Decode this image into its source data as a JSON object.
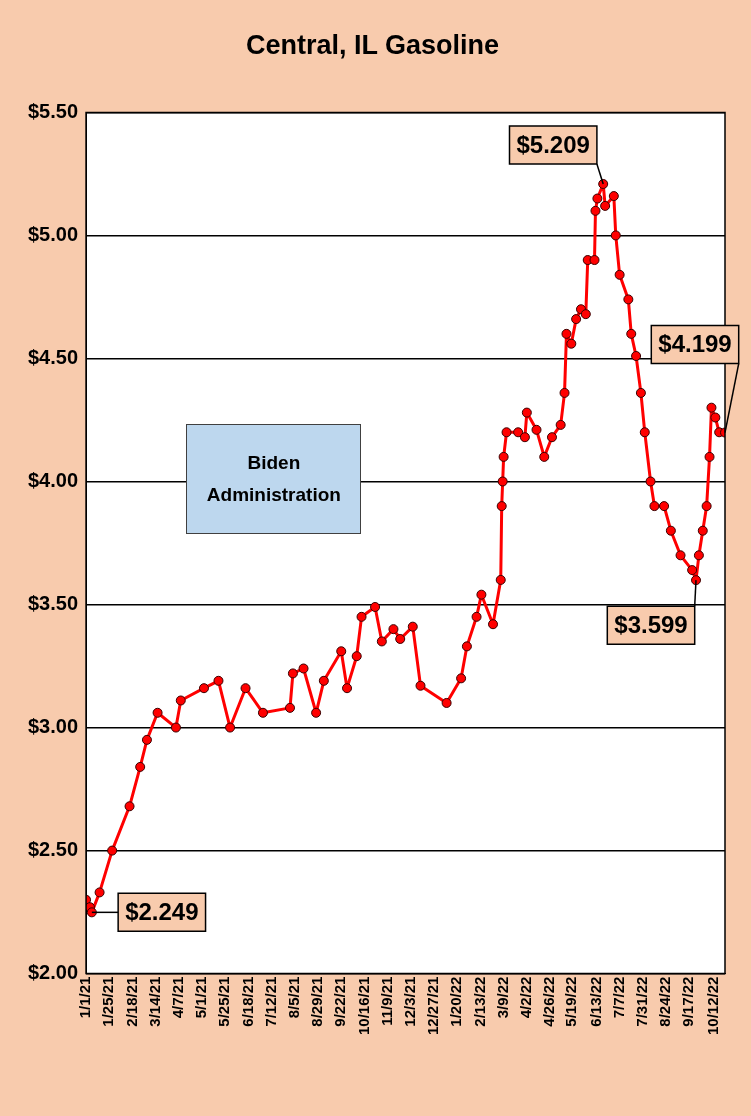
{
  "chart_data": {
    "type": "line",
    "title": "Central, IL Gasoline",
    "x": [
      "2021-01-01",
      "2021-01-05",
      "2021-01-07",
      "2021-01-15",
      "2021-01-28",
      "2021-02-15",
      "2021-02-26",
      "2021-03-05",
      "2021-03-16",
      "2021-04-04",
      "2021-04-09",
      "2021-05-03",
      "2021-05-18",
      "2021-05-30",
      "2021-06-15",
      "2021-07-03",
      "2021-07-31",
      "2021-08-03",
      "2021-08-14",
      "2021-08-27",
      "2021-09-04",
      "2021-09-22",
      "2021-09-28",
      "2021-10-08",
      "2021-10-13",
      "2021-10-27",
      "2021-11-03",
      "2021-11-15",
      "2021-11-22",
      "2021-12-05",
      "2021-12-13",
      "2022-01-09",
      "2022-01-24",
      "2022-01-30",
      "2022-02-09",
      "2022-02-14",
      "2022-02-26",
      "2022-03-06",
      "2022-03-07",
      "2022-03-08",
      "2022-03-09",
      "2022-03-12",
      "2022-03-24",
      "2022-03-31",
      "2022-04-02",
      "2022-04-12",
      "2022-04-20",
      "2022-04-28",
      "2022-05-07",
      "2022-05-11",
      "2022-05-13",
      "2022-05-18",
      "2022-05-23",
      "2022-05-28",
      "2022-06-02",
      "2022-06-04",
      "2022-06-11",
      "2022-06-12",
      "2022-06-14",
      "2022-06-20",
      "2022-06-22",
      "2022-07-01",
      "2022-07-03",
      "2022-07-07",
      "2022-07-16",
      "2022-07-19",
      "2022-07-24",
      "2022-07-29",
      "2022-08-02",
      "2022-08-08",
      "2022-08-12",
      "2022-08-22",
      "2022-08-29",
      "2022-09-08",
      "2022-09-20",
      "2022-09-24",
      "2022-09-27",
      "2022-10-01",
      "2022-10-05",
      "2022-10-08",
      "2022-10-10",
      "2022-10-14",
      "2022-10-18",
      "2022-10-24"
    ],
    "series": [
      {
        "color": "#ff0000",
        "values": [
          2.3,
          2.27,
          2.249,
          2.33,
          2.5,
          2.68,
          2.84,
          2.95,
          3.06,
          3.0,
          3.11,
          3.16,
          3.19,
          3.0,
          3.16,
          3.06,
          3.08,
          3.22,
          3.24,
          3.06,
          3.19,
          3.31,
          3.16,
          3.29,
          3.45,
          3.49,
          3.35,
          3.4,
          3.36,
          3.41,
          3.17,
          3.1,
          3.2,
          3.33,
          3.45,
          3.54,
          3.42,
          3.6,
          3.9,
          4.0,
          4.1,
          4.2,
          4.2,
          4.18,
          4.28,
          4.21,
          4.1,
          4.18,
          4.23,
          4.36,
          4.6,
          4.56,
          4.66,
          4.7,
          4.68,
          4.9,
          4.9,
          5.1,
          5.15,
          5.209,
          5.12,
          5.16,
          5.0,
          4.84,
          4.74,
          4.6,
          4.51,
          4.36,
          4.2,
          4.0,
          3.9,
          3.9,
          3.8,
          3.7,
          3.64,
          3.599,
          3.7,
          3.8,
          3.9,
          4.1,
          4.3,
          4.26,
          4.2,
          4.199
        ]
      }
    ],
    "xlim": [
      "2021-01-01",
      "2022-10-24"
    ],
    "xticks": [
      {
        "value": "2021-01-01",
        "label": "1/1/21"
      },
      {
        "value": "2021-01-25",
        "label": "1/25/21"
      },
      {
        "value": "2021-02-18",
        "label": "2/18/21"
      },
      {
        "value": "2021-03-14",
        "label": "3/14/21"
      },
      {
        "value": "2021-04-07",
        "label": "4/7/21"
      },
      {
        "value": "2021-05-01",
        "label": "5/1/21"
      },
      {
        "value": "2021-05-25",
        "label": "5/25/21"
      },
      {
        "value": "2021-06-18",
        "label": "6/18/21"
      },
      {
        "value": "2021-07-12",
        "label": "7/12/21"
      },
      {
        "value": "2021-08-05",
        "label": "8/5/21"
      },
      {
        "value": "2021-08-29",
        "label": "8/29/21"
      },
      {
        "value": "2021-09-22",
        "label": "9/22/21"
      },
      {
        "value": "2021-10-16",
        "label": "10/16/21"
      },
      {
        "value": "2021-11-09",
        "label": "11/9/21"
      },
      {
        "value": "2021-12-03",
        "label": "12/3/21"
      },
      {
        "value": "2021-12-27",
        "label": "12/27/21"
      },
      {
        "value": "2022-01-20",
        "label": "1/20/22"
      },
      {
        "value": "2022-02-13",
        "label": "2/13/22"
      },
      {
        "value": "2022-03-09",
        "label": "3/9/22"
      },
      {
        "value": "2022-04-02",
        "label": "4/2/22"
      },
      {
        "value": "2022-04-26",
        "label": "4/26/22"
      },
      {
        "value": "2022-05-19",
        "label": "5/19/22"
      },
      {
        "value": "2022-06-13",
        "label": "6/13/22"
      },
      {
        "value": "2022-07-07",
        "label": "7/7/22"
      },
      {
        "value": "2022-07-31",
        "label": "7/31/22"
      },
      {
        "value": "2022-08-24",
        "label": "8/24/22"
      },
      {
        "value": "2022-09-17",
        "label": "9/17/22"
      },
      {
        "value": "2022-10-12",
        "label": "10/12/22"
      }
    ],
    "ylim": [
      2,
      5.5
    ],
    "yticks": [
      {
        "value": 2,
        "label": "$2.00"
      },
      {
        "value": 2.5,
        "label": "$2.50"
      },
      {
        "value": 3,
        "label": "$3.00"
      },
      {
        "value": 3.5,
        "label": "$3.50"
      },
      {
        "value": 4,
        "label": "$4.00"
      },
      {
        "value": 4.5,
        "label": "$4.50"
      },
      {
        "value": 5,
        "label": "$5.00"
      },
      {
        "value": 5.5,
        "label": "$5.50"
      }
    ],
    "grid": "y",
    "marker": "circle",
    "line_style": "solid",
    "annotations": [
      {
        "text": "$2.249",
        "x": "2021-01-07",
        "y": 2.249
      },
      {
        "text": "$5.209",
        "x": "2022-06-20",
        "y": 5.209
      },
      {
        "text": "$3.599",
        "x": "2022-09-24",
        "y": 3.599
      },
      {
        "text": "$4.199",
        "x": "2022-10-24",
        "y": 4.199
      },
      "Biden\nAdministration"
    ]
  }
}
